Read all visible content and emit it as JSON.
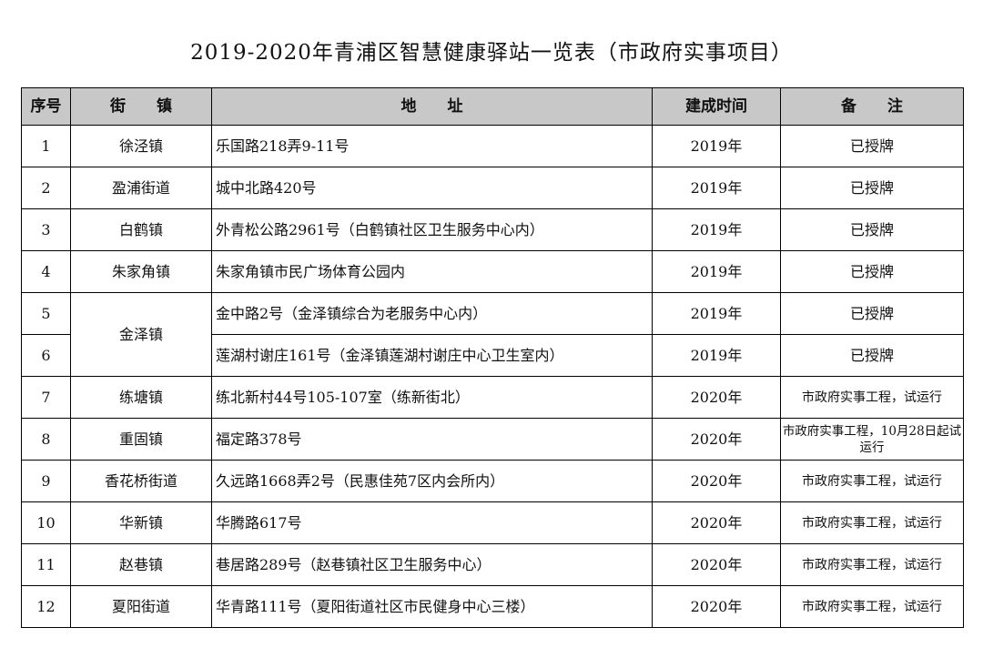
{
  "title": "2019-2020年青浦区智慧健康驿站一览表（市政府实事项目）",
  "headers": {
    "no": "序号",
    "town": "街 镇",
    "address": "地  址",
    "year": "建成时间",
    "note": "备 注"
  },
  "rows": [
    {
      "no": "1",
      "town": "徐泾镇",
      "address": "乐国路218弄9-11号",
      "year": "2019年",
      "note": "已授牌"
    },
    {
      "no": "2",
      "town": "盈浦街道",
      "address": "城中北路420号",
      "year": "2019年",
      "note": "已授牌"
    },
    {
      "no": "3",
      "town": "白鹤镇",
      "address": "外青松公路2961号（白鹤镇社区卫生服务中心内）",
      "year": "2019年",
      "note": "已授牌"
    },
    {
      "no": "4",
      "town": "朱家角镇",
      "address": "朱家角镇市民广场体育公园内",
      "year": "2019年",
      "note": "已授牌"
    },
    {
      "no": "5",
      "town": "金泽镇",
      "address": "金中路2号（金泽镇综合为老服务中心内）",
      "year": "2019年",
      "note": "已授牌"
    },
    {
      "no": "6",
      "town": "",
      "address": "莲湖村谢庄161号（金泽镇莲湖村谢庄中心卫生室内）",
      "year": "2019年",
      "note": "已授牌"
    },
    {
      "no": "7",
      "town": "练塘镇",
      "address": "练北新村44号105-107室（练新街北）",
      "year": "2020年",
      "note": "市政府实事工程，试运行"
    },
    {
      "no": "8",
      "town": "重固镇",
      "address": "福定路378号",
      "year": "2020年",
      "note": "市政府实事工程，10月28日起试运行"
    },
    {
      "no": "9",
      "town": "香花桥街道",
      "address": "久远路1668弄2号（民惠佳苑7区内会所内）",
      "year": "2020年",
      "note": "市政府实事工程，试运行"
    },
    {
      "no": "10",
      "town": "华新镇",
      "address": "华腾路617号",
      "year": "2020年",
      "note": "市政府实事工程，试运行"
    },
    {
      "no": "11",
      "town": "赵巷镇",
      "address": "巷居路289号（赵巷镇社区卫生服务中心）",
      "year": "2020年",
      "note": "市政府实事工程，试运行"
    },
    {
      "no": "12",
      "town": "夏阳街道",
      "address": "华青路111号（夏阳街道社区市民健身中心三楼）",
      "year": "2020年",
      "note": "市政府实事工程，试运行"
    }
  ]
}
